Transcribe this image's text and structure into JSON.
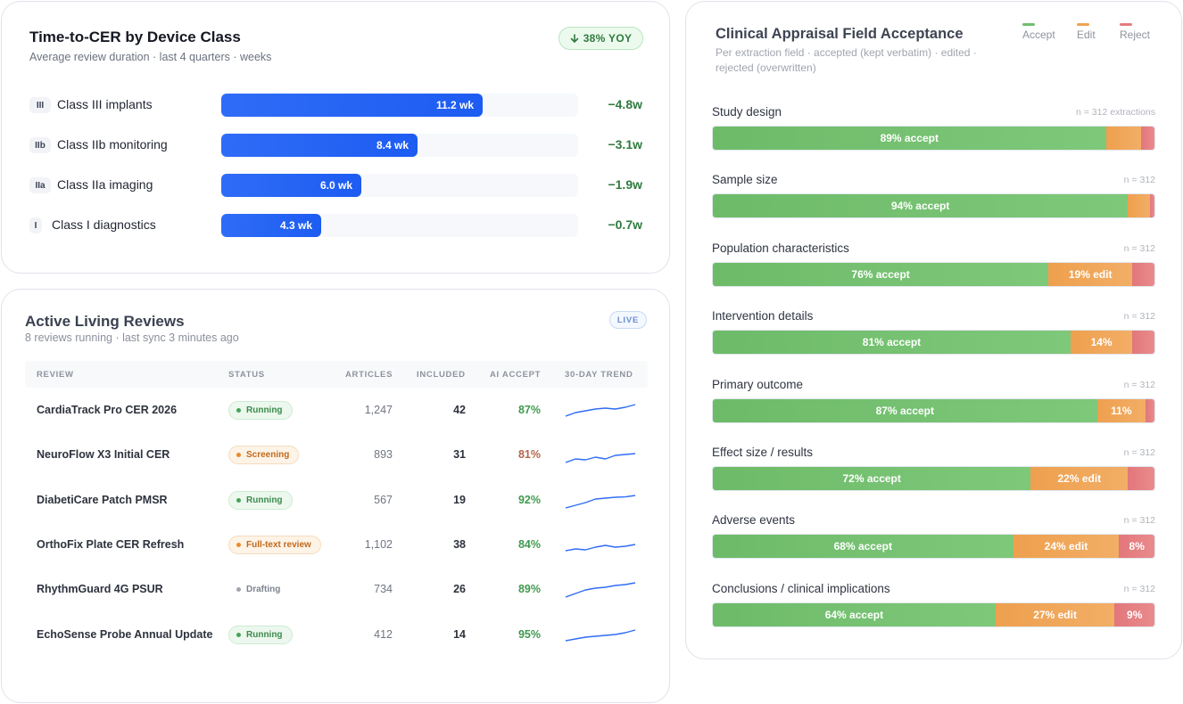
{
  "cer": {
    "title": "Time-to-CER by Device Class",
    "subtitle": "Average review duration · last 4 quarters · weeks",
    "yoy_badge": "38% YOY",
    "rows": [
      {
        "chip": "III",
        "label": "Class III implants",
        "value": 11.2,
        "value_label": "11.2 wk",
        "delta": "−4.8w"
      },
      {
        "chip": "IIb",
        "label": "Class IIb monitoring",
        "value": 8.4,
        "value_label": "8.4 wk",
        "delta": "−3.1w"
      },
      {
        "chip": "IIa",
        "label": "Class IIa imaging",
        "value": 6.0,
        "value_label": "6.0 wk",
        "delta": "−1.9w"
      },
      {
        "chip": "I",
        "label": "Class I diagnostics",
        "value": 4.3,
        "value_label": "4.3 wk",
        "delta": "−0.7w"
      }
    ],
    "bar_color": "#1d5cf2",
    "delta_color": "#2f7a3d"
  },
  "reviews": {
    "title": "Active Living Reviews",
    "subtitle": "8 reviews running · last sync 3 minutes ago",
    "live_badge": "LIVE",
    "columns": [
      "REVIEW",
      "STATUS",
      "ARTICLES",
      "INCLUDED",
      "AI ACCEPT",
      "30-DAY TREND"
    ],
    "rows": [
      {
        "name": "CardiaTrack Pro CER 2026",
        "status": "Running",
        "status_kind": "running",
        "articles": "1,247",
        "included": "42",
        "ai_accept": "87%",
        "trend": [
          30,
          32,
          33,
          34,
          34.5,
          34,
          35,
          36.5
        ]
      },
      {
        "name": "NeuroFlow X3 Initial CER",
        "status": "Screening",
        "status_kind": "screening",
        "articles": "893",
        "included": "31",
        "ai_accept": "81%",
        "trend": [
          29,
          31,
          30.5,
          32,
          31,
          33,
          33.5,
          34
        ]
      },
      {
        "name": "DiabetiCare Patch PMSR",
        "status": "Running",
        "status_kind": "running",
        "articles": "567",
        "included": "19",
        "ai_accept": "92%",
        "trend": [
          29,
          30.5,
          32,
          34,
          34.5,
          35,
          35.2,
          36
        ]
      },
      {
        "name": "OrthoFix Plate CER Refresh",
        "status": "Full-text review",
        "status_kind": "fulltext",
        "articles": "1,102",
        "included": "38",
        "ai_accept": "84%",
        "trend": [
          30,
          31,
          30.5,
          32,
          33,
          32,
          32.5,
          33.5
        ]
      },
      {
        "name": "RhythmGuard 4G PSUR",
        "status": "Drafting",
        "status_kind": "drafting",
        "articles": "734",
        "included": "26",
        "ai_accept": "89%",
        "trend": [
          29,
          31,
          33,
          34,
          34.5,
          35.5,
          36,
          37
        ]
      },
      {
        "name": "EchoSense Probe Annual Update",
        "status": "Running",
        "status_kind": "running",
        "articles": "412",
        "included": "14",
        "ai_accept": "95%",
        "trend": [
          30,
          31,
          32,
          32.5,
          33,
          33.5,
          34.5,
          36
        ]
      }
    ],
    "status_colors": {
      "running": {
        "bg": "#ecf8ee",
        "border": "#cdebd3",
        "text": "#3c8a4b",
        "dot": "#45a355"
      },
      "screening": {
        "bg": "#fdf3e7",
        "border": "#f5dcc0",
        "text": "#c06a1d",
        "dot": "#ea8a2d"
      },
      "fulltext": {
        "bg": "#fdf3e7",
        "border": "#f5dcc0",
        "text": "#c06a1d",
        "dot": "#ea8a2d"
      },
      "drafting": {
        "bg": "#ffffff",
        "border": "#ffffff",
        "text": "#7d838f",
        "dot": "#a0a5ae"
      }
    },
    "accept_colors": {
      "high": "#3f9a4e",
      "mid": "#b5654a"
    },
    "spark_color": "#2f6cf6"
  },
  "field": {
    "title": "Clinical Appraisal Field Acceptance",
    "subtitle": "Per extraction field · accepted (kept verbatim) · edited · rejected (overwritten)",
    "legend": [
      {
        "label": "Accept",
        "color": "#6fbf6c"
      },
      {
        "label": "Edit",
        "color": "#f0a350"
      },
      {
        "label": "Reject",
        "color": "#e47c7f"
      }
    ],
    "rows": [
      {
        "label": "Study design",
        "n": "n = 312 extractions",
        "accept": 89,
        "edit": 8,
        "reject": 3,
        "accept_label": "89% accept",
        "edit_label": "",
        "reject_label": ""
      },
      {
        "label": "Sample size",
        "n": "n = 312",
        "accept": 94,
        "edit": 5,
        "reject": 1,
        "accept_label": "94% accept",
        "edit_label": "",
        "reject_label": ""
      },
      {
        "label": "Population characteristics",
        "n": "n = 312",
        "accept": 76,
        "edit": 19,
        "reject": 5,
        "accept_label": "76% accept",
        "edit_label": "19% edit",
        "reject_label": ""
      },
      {
        "label": "Intervention details",
        "n": "n = 312",
        "accept": 81,
        "edit": 14,
        "reject": 5,
        "accept_label": "81% accept",
        "edit_label": "14%",
        "reject_label": ""
      },
      {
        "label": "Primary outcome",
        "n": "n = 312",
        "accept": 87,
        "edit": 11,
        "reject": 2,
        "accept_label": "87% accept",
        "edit_label": "11%",
        "reject_label": ""
      },
      {
        "label": "Effect size / results",
        "n": "n = 312",
        "accept": 72,
        "edit": 22,
        "reject": 6,
        "accept_label": "72% accept",
        "edit_label": "22% edit",
        "reject_label": ""
      },
      {
        "label": "Adverse events",
        "n": "n = 312",
        "accept": 68,
        "edit": 24,
        "reject": 8,
        "accept_label": "68% accept",
        "edit_label": "24% edit",
        "reject_label": "8%"
      },
      {
        "label": "Conclusions / clinical implications",
        "n": "n = 312",
        "accept": 64,
        "edit": 27,
        "reject": 9,
        "accept_label": "64% accept",
        "edit_label": "27% edit",
        "reject_label": "9%"
      }
    ]
  }
}
